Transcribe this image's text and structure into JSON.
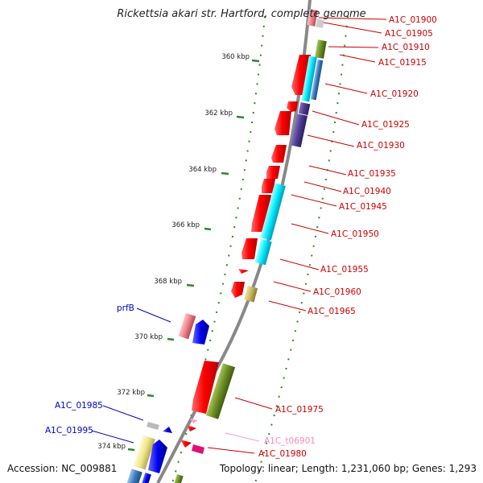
{
  "title": "Rickettsia akari str. Hartford, complete genome",
  "accession": "Accession: NC_009881",
  "summary": "Topology: linear; Length: 1,231,060 bp; Genes: 1,293",
  "ticks": [
    "360 kbp",
    "362 kbp",
    "364 kbp",
    "366 kbp",
    "368 kbp",
    "370 kbp",
    "372 kbp",
    "374 kbp"
  ],
  "genes_right": [
    "A1C_01900",
    "A1C_01905",
    "A1C_01910",
    "A1C_01915",
    "A1C_01920",
    "A1C_01925",
    "A1C_01930",
    "A1C_01935",
    "A1C_01940",
    "A1C_01945",
    "A1C_01950",
    "A1C_01955",
    "A1C_01960",
    "A1C_01965",
    "A1C_01975",
    "A1C_t06901",
    "A1C_01980"
  ],
  "genes_left": [
    "prfB",
    "A1C_01985",
    "A1C_01995"
  ],
  "colors": {
    "label_red": "#cc0000",
    "label_blue": "#0000cc",
    "label_pink": "#ff88bb",
    "backbone": "#888888",
    "tick_green": "#2a8a2a",
    "cds_red": "#ff0000",
    "cyan": "#00eeff",
    "olive": "#6b8e23",
    "purple": "#4b3b8f",
    "blue": "#0000ee"
  }
}
